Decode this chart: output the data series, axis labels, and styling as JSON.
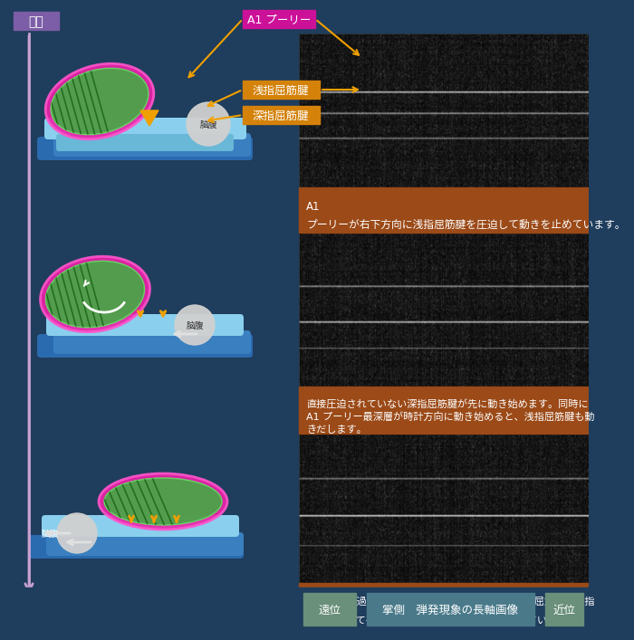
{
  "bg_color": "#1f3d5c",
  "title_box_color": "#7b5ea7",
  "title_text": "伸展",
  "arrow_color": "#c8a0d0",
  "label_box_color_orange": "#d4820a",
  "label_box_color_pink": "#cc1199",
  "desc_box_color": "#9b4a18",
  "bottom_label_color": "#6a8f7a",
  "bottom_center_color": "#4a7a8a",
  "bottom_labels": [
    "遠位",
    "掌側　弾発現象の長軸画像",
    "近位"
  ],
  "desc1": "A1 プーリーが右下方向に浅指屈筋腱を圧迫して動きを止めています。",
  "desc2": "直接圧迫されていない深指屈筋腱が先に動き始めます。同時に A1 プーリー最深層が時計方向に動き始めると、浅指屈筋腱も動きだします。",
  "desc3": "屈筋腱が通過後、A1 プーリー再深層と浅指・深指屈筋腱共、指節骨に対して平行な位置におさまった状態になっています。",
  "label_a1": "A1 プーリー",
  "label_shallow": "浅指屈筋腱",
  "label_deep": "深指屈筋腱",
  "label_tendon": "脑腹",
  "color_bone_dark": "#2a6aaf",
  "color_bone_light": "#5aacdc",
  "color_tendon_light": "#8ad0ee",
  "color_pulley_pink": "#ee22aa",
  "color_pulley_green": "#44aa44",
  "color_ball": "#d0d0d0",
  "color_orange_arrow": "#f0a000",
  "color_white_arrow": "#e0e0e0"
}
